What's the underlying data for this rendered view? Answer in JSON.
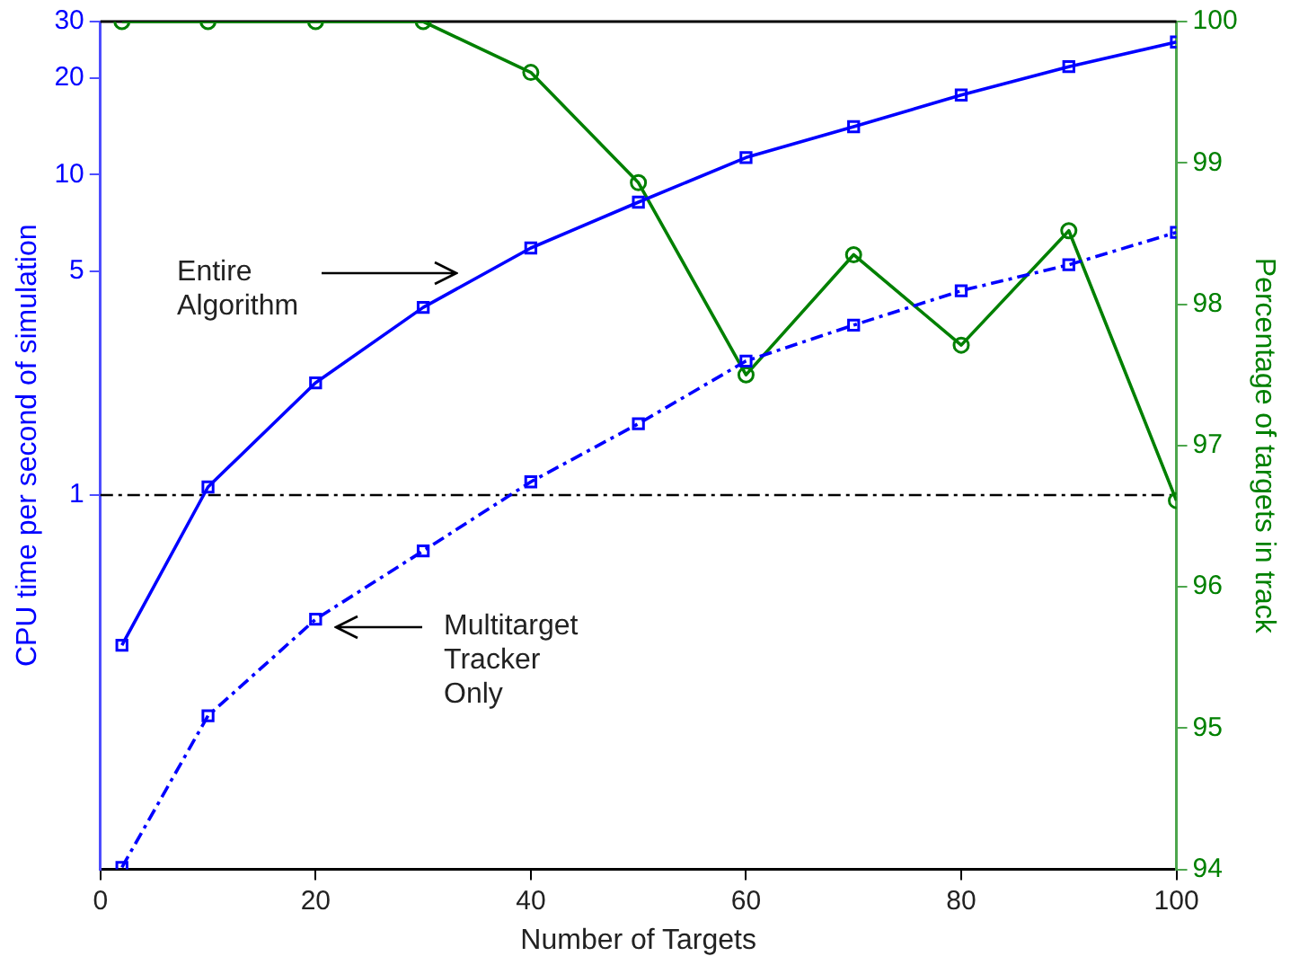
{
  "chart_data": {
    "type": "line",
    "xlabel": "Number of Targets",
    "ylabel": "CPU time per second of simulation",
    "y2label": "Percentage of targets in track",
    "x": [
      2,
      10,
      20,
      30,
      40,
      50,
      60,
      70,
      80,
      90,
      100
    ],
    "xlim": [
      0,
      100
    ],
    "xticks": [
      0,
      20,
      40,
      60,
      80,
      100
    ],
    "log": "y",
    "ylim": [
      0.068,
      30
    ],
    "yticks": [
      1,
      5,
      10,
      20,
      30
    ],
    "y2lim": [
      94,
      100
    ],
    "y2ticks": [
      94,
      95,
      96,
      97,
      98,
      99,
      100
    ],
    "grid": false,
    "legend": false,
    "series": [
      {
        "color": "#0000ff",
        "marker": "square",
        "line_style": "solid",
        "values": [
          0.34,
          1.06,
          2.24,
          3.85,
          5.9,
          8.2,
          11.3,
          14.1,
          17.7,
          21.7,
          25.9
        ]
      },
      {
        "color": "#0000ff",
        "marker": "square",
        "line_style": "dashed",
        "values": [
          0.069,
          0.205,
          0.41,
          0.67,
          1.1,
          1.67,
          2.62,
          3.39,
          4.34,
          5.23,
          6.6
        ]
      },
      {
        "color": "#008000",
        "marker": "circle",
        "line_style": "solid",
        "axis": "y2",
        "values": [
          100,
          100,
          100,
          100,
          99.64,
          98.86,
          97.5,
          98.35,
          97.71,
          98.52,
          96.61
        ]
      }
    ],
    "ref_lines": [
      {
        "axis": "y",
        "value": 1,
        "color": "#000000",
        "line_style": "dashed"
      }
    ],
    "annotations": [
      "Entire Algorithm",
      "Multitarget Tracker Only"
    ]
  }
}
